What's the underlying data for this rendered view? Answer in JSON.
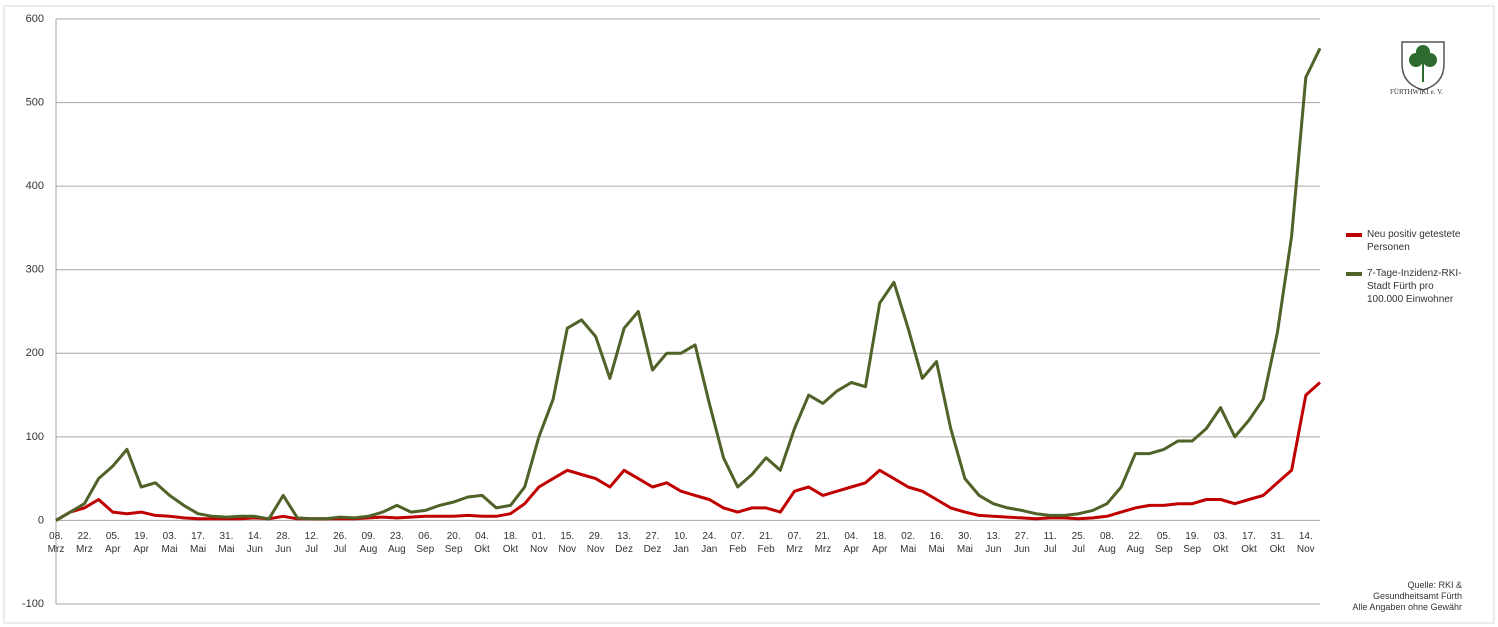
{
  "chart_data": {
    "type": "line",
    "categories": [
      "08.\nMrz",
      null,
      "22.\nMrz",
      null,
      "05.\nApr",
      null,
      "19.\nApr",
      null,
      "03.\nMai",
      null,
      "17.\nMai",
      null,
      "31.\nMai",
      null,
      "14.\nJun",
      null,
      "28.\nJun",
      null,
      "12.\nJul",
      null,
      "26.\nJul",
      null,
      "09.\nAug",
      null,
      "23.\nAug",
      null,
      "06.\nSep",
      null,
      "20.\nSep",
      null,
      "04.\nOkt",
      null,
      "18.\nOkt",
      null,
      "01.\nNov",
      null,
      "15.\nNov",
      null,
      "29.\nNov",
      null,
      "13.\nDez",
      null,
      "27.\nDez",
      null,
      "10.\nJan",
      null,
      "24.\nJan",
      null,
      "07.\nFeb",
      null,
      "21.\nFeb",
      null,
      "07.\nMrz",
      null,
      "21.\nMrz",
      null,
      "04.\nApr",
      null,
      "18.\nApr",
      null,
      "02.\nMai",
      null,
      "16.\nMai",
      null,
      "30.\nMai",
      null,
      "13.\nJun",
      null,
      "27.\nJun",
      null,
      "11.\nJul",
      null,
      "25.\nJul",
      null,
      "08.\nAug",
      null,
      "22.\nAug",
      null,
      "05.\nSep",
      null,
      "19.\nSep",
      null,
      "03.\nOkt",
      null,
      "17.\nOkt",
      null,
      "31.\nOkt",
      null,
      "14.\nNov",
      null
    ],
    "series": [
      {
        "name": "Neu positiv getestete Personen",
        "color": "#c00000",
        "values": [
          0,
          10,
          15,
          25,
          10,
          8,
          10,
          6,
          5,
          3,
          2,
          2,
          2,
          2,
          3,
          2,
          5,
          2,
          2,
          2,
          2,
          2,
          3,
          4,
          3,
          4,
          5,
          5,
          5,
          6,
          5,
          5,
          8,
          20,
          40,
          50,
          60,
          55,
          50,
          40,
          60,
          50,
          40,
          45,
          35,
          30,
          25,
          15,
          10,
          15,
          15,
          10,
          35,
          40,
          30,
          35,
          40,
          45,
          60,
          50,
          40,
          35,
          25,
          15,
          10,
          6,
          5,
          4,
          3,
          2,
          3,
          3,
          2,
          3,
          5,
          10,
          15,
          18,
          18,
          20,
          20,
          25,
          25,
          20,
          25,
          30,
          45,
          60,
          150,
          165
        ]
      },
      {
        "name": "7-Tage-Inzidenz-RKI-Stadt Fürth pro 100.000 Einwohner",
        "color": "#4f6228",
        "values": [
          0,
          10,
          20,
          50,
          65,
          85,
          40,
          45,
          30,
          18,
          8,
          5,
          4,
          5,
          5,
          2,
          30,
          3,
          2,
          2,
          4,
          3,
          5,
          10,
          18,
          10,
          12,
          18,
          22,
          28,
          30,
          15,
          18,
          40,
          100,
          145,
          230,
          240,
          220,
          170,
          230,
          250,
          180,
          200,
          200,
          210,
          140,
          75,
          40,
          55,
          75,
          60,
          110,
          150,
          140,
          155,
          165,
          160,
          260,
          285,
          230,
          170,
          190,
          110,
          50,
          30,
          20,
          15,
          12,
          8,
          6,
          6,
          8,
          12,
          20,
          40,
          80,
          80,
          85,
          95,
          95,
          110,
          135,
          100,
          120,
          145,
          225,
          340,
          530,
          565
        ]
      }
    ],
    "ylim": [
      -100,
      600
    ],
    "yticks": [
      -100,
      0,
      100,
      200,
      300,
      400,
      500,
      600
    ],
    "grid": true,
    "legend": "right",
    "annotation": "Quelle: RKI &\nGesundheitsamt Fürth\nAlle Angaben ohne Gewähr",
    "logo_text": "FÜRTHWIKI e. V."
  }
}
